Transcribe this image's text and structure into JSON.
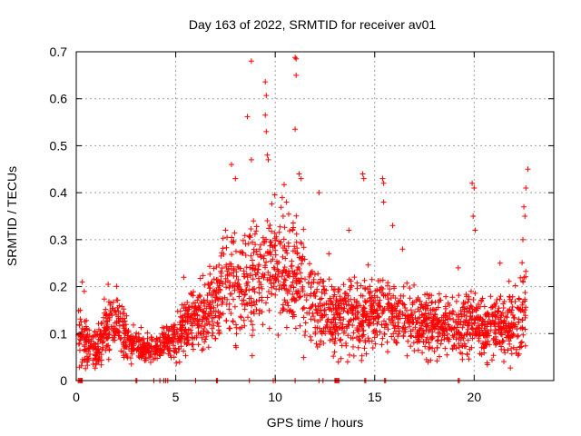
{
  "chart_data": {
    "type": "scatter",
    "title": "Day 163 of 2022, SRMTID for receiver av01",
    "xlabel": "GPS time / hours",
    "ylabel": "SRMTID / TECUs",
    "xlim": [
      0,
      24
    ],
    "ylim": [
      0,
      0.7
    ],
    "xticks": [
      "0",
      "5",
      "10",
      "15",
      "20"
    ],
    "xtick_values": [
      0,
      5,
      10,
      15,
      20
    ],
    "yticks": [
      "0",
      "0.1",
      "0.2",
      "0.3",
      "0.4",
      "0.5",
      "0.6",
      "0.7"
    ],
    "ytick_values": [
      0,
      0.1,
      0.2,
      0.3,
      0.4,
      0.5,
      0.6,
      0.7
    ],
    "grid": true,
    "marker": "+",
    "series": [
      {
        "name": "SRMTID",
        "color": "#ff0000",
        "profile": [
          [
            0.1,
            0.09,
            0.04
          ],
          [
            0.6,
            0.07,
            0.03
          ],
          [
            1.0,
            0.06,
            0.03
          ],
          [
            1.5,
            0.11,
            0.04
          ],
          [
            2.0,
            0.12,
            0.04
          ],
          [
            2.5,
            0.09,
            0.03
          ],
          [
            3.0,
            0.07,
            0.02
          ],
          [
            3.5,
            0.07,
            0.02
          ],
          [
            4.0,
            0.07,
            0.02
          ],
          [
            4.5,
            0.08,
            0.02
          ],
          [
            5.0,
            0.09,
            0.03
          ],
          [
            5.5,
            0.12,
            0.04
          ],
          [
            6.0,
            0.13,
            0.04
          ],
          [
            6.5,
            0.14,
            0.05
          ],
          [
            7.0,
            0.16,
            0.06
          ],
          [
            7.5,
            0.22,
            0.08
          ],
          [
            8.0,
            0.2,
            0.07
          ],
          [
            8.5,
            0.19,
            0.07
          ],
          [
            9.0,
            0.22,
            0.08
          ],
          [
            9.5,
            0.25,
            0.09
          ],
          [
            10.0,
            0.24,
            0.08
          ],
          [
            10.5,
            0.23,
            0.08
          ],
          [
            11.0,
            0.22,
            0.08
          ],
          [
            11.5,
            0.19,
            0.07
          ],
          [
            12.0,
            0.17,
            0.06
          ],
          [
            12.5,
            0.15,
            0.05
          ],
          [
            13.0,
            0.13,
            0.05
          ],
          [
            13.5,
            0.14,
            0.05
          ],
          [
            14.0,
            0.14,
            0.05
          ],
          [
            14.5,
            0.13,
            0.05
          ],
          [
            15.0,
            0.14,
            0.05
          ],
          [
            15.5,
            0.15,
            0.05
          ],
          [
            16.0,
            0.14,
            0.05
          ],
          [
            16.5,
            0.13,
            0.04
          ],
          [
            17.0,
            0.12,
            0.04
          ],
          [
            17.5,
            0.12,
            0.04
          ],
          [
            18.0,
            0.12,
            0.04
          ],
          [
            18.5,
            0.12,
            0.04
          ],
          [
            19.0,
            0.11,
            0.04
          ],
          [
            19.5,
            0.12,
            0.04
          ],
          [
            20.0,
            0.13,
            0.04
          ],
          [
            20.5,
            0.11,
            0.04
          ],
          [
            21.0,
            0.12,
            0.04
          ],
          [
            21.5,
            0.11,
            0.04
          ],
          [
            22.0,
            0.12,
            0.05
          ],
          [
            22.6,
            0.16,
            0.06
          ]
        ],
        "outliers": [
          [
            8.8,
            0.68
          ],
          [
            9.5,
            0.636
          ],
          [
            9.55,
            0.607
          ],
          [
            9.5,
            0.565
          ],
          [
            9.55,
            0.53
          ],
          [
            9.6,
            0.48
          ],
          [
            9.65,
            0.47
          ],
          [
            11.0,
            0.688
          ],
          [
            11.05,
            0.685
          ],
          [
            11.05,
            0.65
          ],
          [
            11.0,
            0.535
          ],
          [
            8.6,
            0.562
          ],
          [
            8.8,
            0.47
          ],
          [
            7.8,
            0.46
          ],
          [
            8.0,
            0.43
          ],
          [
            7.5,
            0.32
          ],
          [
            11.2,
            0.44
          ],
          [
            11.3,
            0.43
          ],
          [
            12.2,
            0.4
          ],
          [
            14.4,
            0.44
          ],
          [
            14.45,
            0.43
          ],
          [
            15.4,
            0.43
          ],
          [
            15.45,
            0.42
          ],
          [
            15.45,
            0.38
          ],
          [
            19.9,
            0.42
          ],
          [
            20.0,
            0.41
          ],
          [
            19.95,
            0.35
          ],
          [
            20.05,
            0.32
          ],
          [
            22.7,
            0.45
          ],
          [
            22.6,
            0.41
          ],
          [
            22.5,
            0.37
          ],
          [
            22.55,
            0.35
          ],
          [
            22.45,
            0.3
          ],
          [
            0.3,
            0.21
          ],
          [
            0.4,
            0.19
          ],
          [
            1.6,
            0.205
          ],
          [
            5.4,
            0.22
          ],
          [
            10.4,
            0.35
          ],
          [
            13.7,
            0.32
          ],
          [
            15.9,
            0.33
          ],
          [
            12.7,
            0.27
          ],
          [
            16.4,
            0.28
          ],
          [
            21.3,
            0.25
          ],
          [
            19.2,
            0.24
          ]
        ],
        "zero_hours": [
          0.1,
          0.15,
          0.2,
          0.25,
          0.3,
          3.0,
          3.05,
          3.9,
          4.2,
          4.4,
          4.5,
          4.6,
          6.0,
          7.05,
          7.1,
          8.7,
          9.9,
          10.0,
          11.0,
          12.2,
          12.4,
          13.0,
          13.05,
          13.1,
          13.15,
          13.2,
          14.5,
          14.55,
          15.5,
          15.55,
          19.2,
          19.25
        ]
      }
    ]
  }
}
